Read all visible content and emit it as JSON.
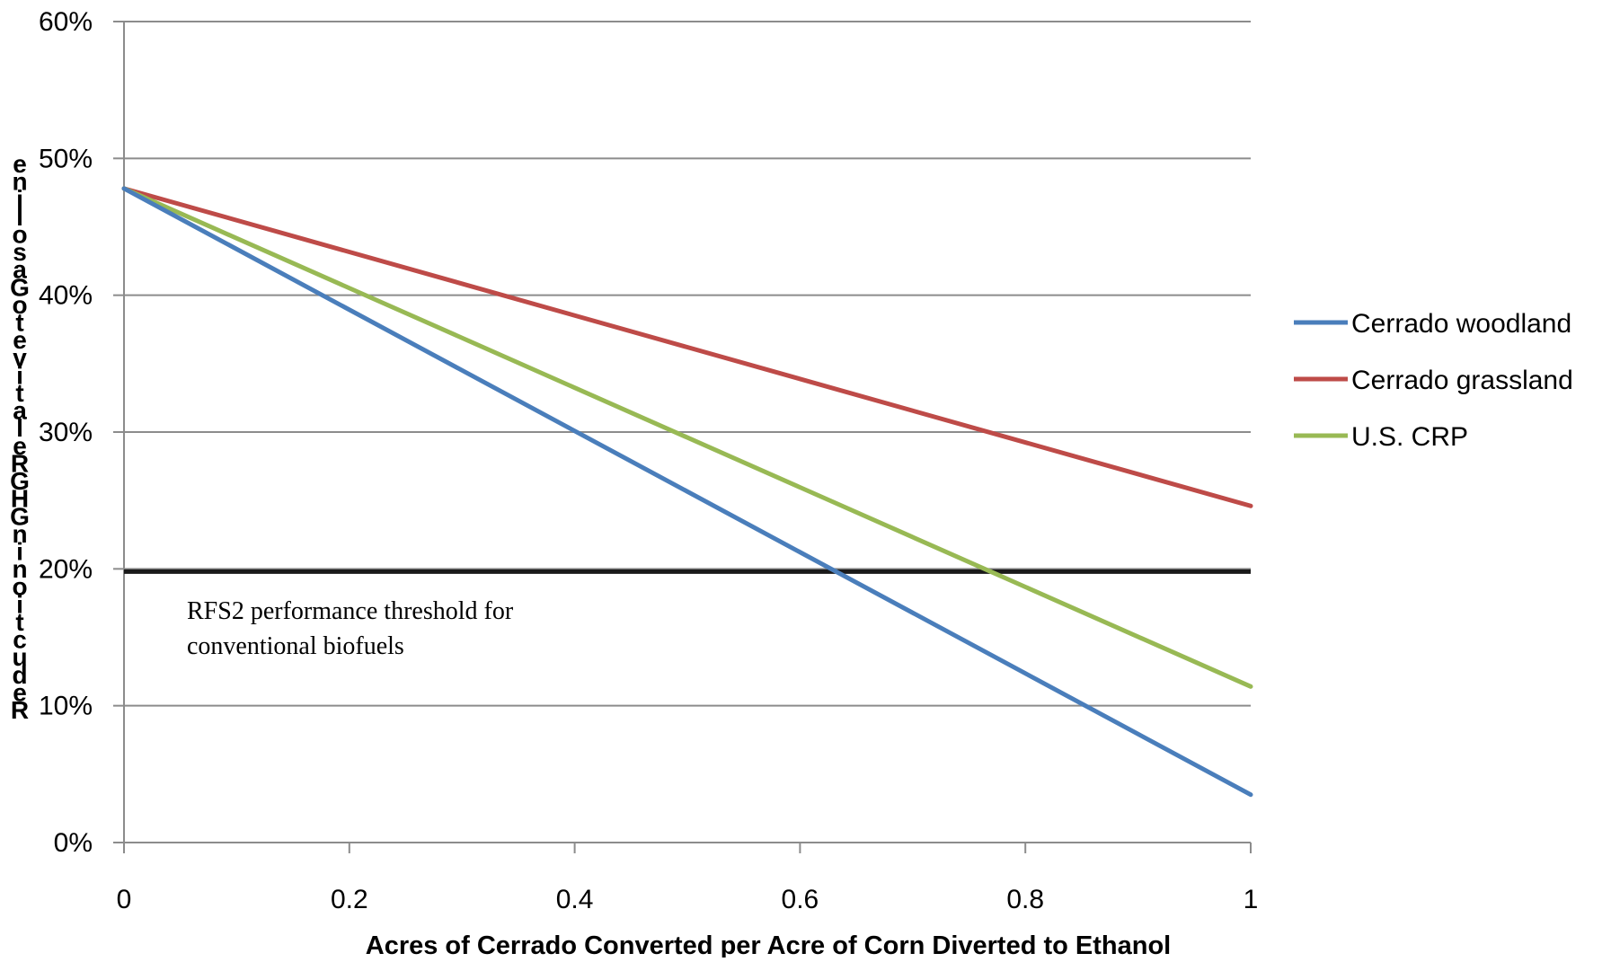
{
  "chart_data": {
    "type": "line",
    "title": "",
    "xlabel": "Acres of Cerrado Converted per Acre of Corn Diverted to Ethanol",
    "ylabel": "Reduction in GHG Relative to Gasoline",
    "x": [
      0,
      1
    ],
    "x_ticks": [
      "0",
      "0.2",
      "0.4",
      "0.6",
      "0.8",
      "1"
    ],
    "x_tick_values": [
      0,
      0.2,
      0.4,
      0.6,
      0.8,
      1
    ],
    "y_ticks": [
      "0%",
      "10%",
      "20%",
      "30%",
      "40%",
      "50%",
      "60%"
    ],
    "y_tick_values": [
      0,
      10,
      20,
      30,
      40,
      50,
      60
    ],
    "xlim": [
      0,
      1
    ],
    "ylim": [
      0,
      60
    ],
    "grid": "horizontal",
    "legend_position": "right",
    "series": [
      {
        "name": "Cerrado woodland",
        "x": [
          0,
          1
        ],
        "values": [
          47.8,
          3.5
        ],
        "color": "#4a7ebb"
      },
      {
        "name": "Cerrado grassland",
        "x": [
          0,
          1
        ],
        "values": [
          47.8,
          24.6
        ],
        "color": "#be4b48"
      },
      {
        "name": "U.S. CRP",
        "x": [
          0,
          1
        ],
        "values": [
          47.8,
          11.4
        ],
        "color": "#98b954"
      }
    ],
    "threshold": {
      "value": 19.8,
      "color": "#1a1a1a"
    },
    "annotation": {
      "line1": "RFS2 performance threshold for",
      "line2": "conventional biofuels"
    }
  }
}
